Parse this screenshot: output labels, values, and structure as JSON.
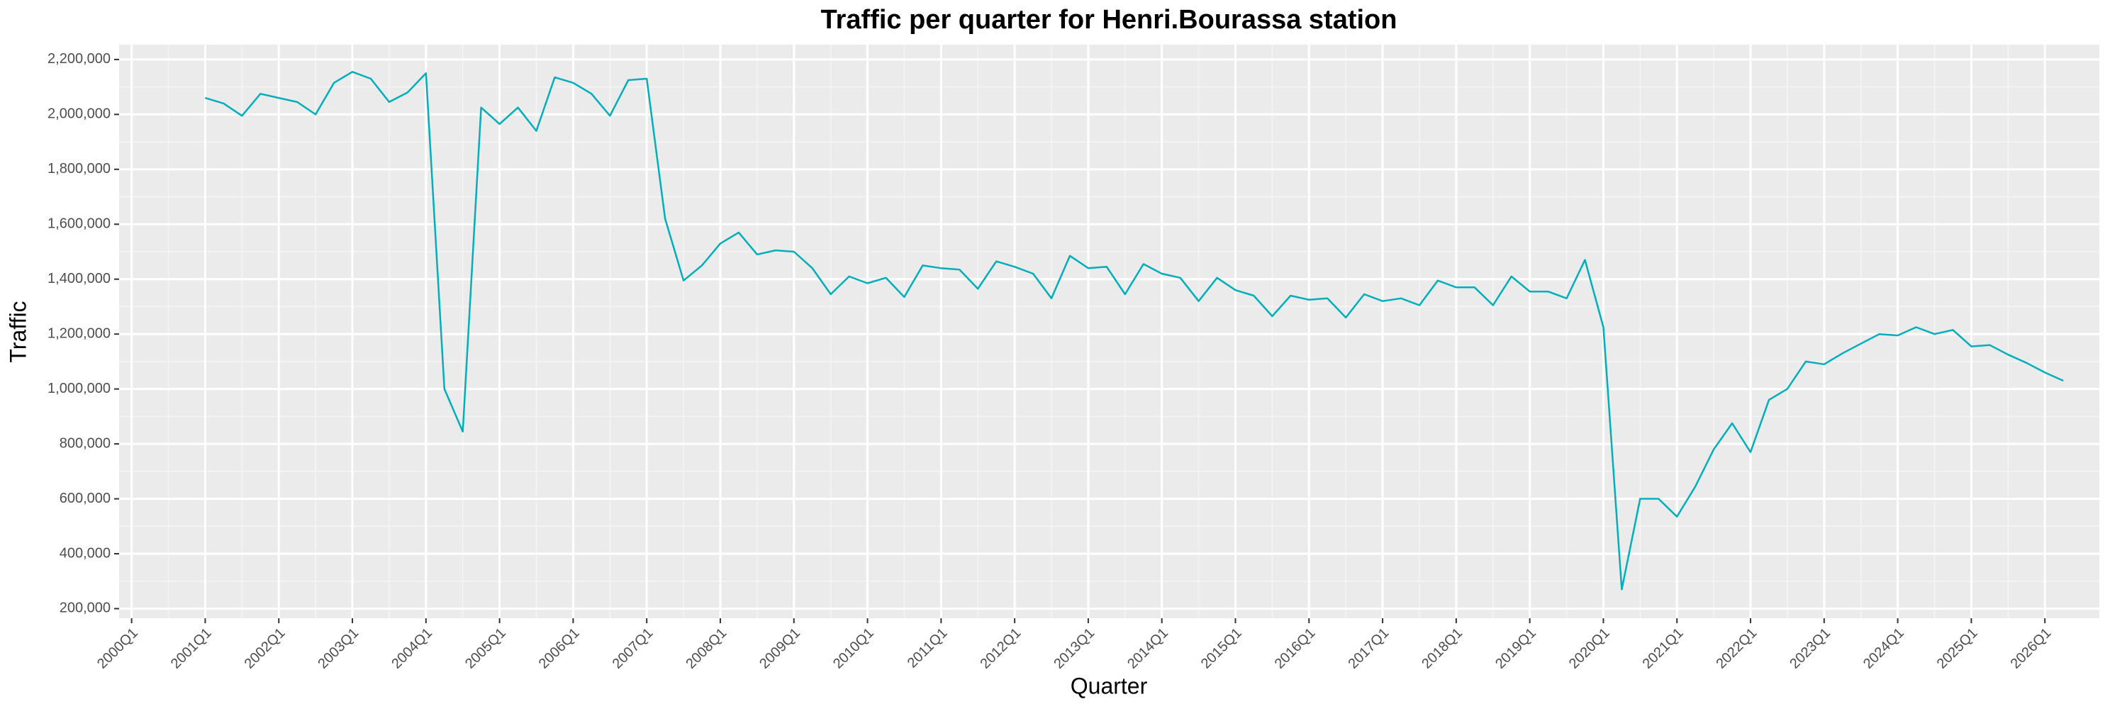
{
  "chart_data": {
    "type": "line",
    "title": "Traffic per quarter for Henri.Bourassa station",
    "x_label": "Quarter",
    "y_label": "Traffic",
    "color": "#00AFBB",
    "grid": true,
    "x": [
      "2001Q1",
      "2001Q2",
      "2001Q3",
      "2001Q4",
      "2002Q1",
      "2002Q2",
      "2002Q3",
      "2002Q4",
      "2003Q1",
      "2003Q2",
      "2003Q3",
      "2003Q4",
      "2004Q1",
      "2004Q2",
      "2004Q3",
      "2004Q4",
      "2005Q1",
      "2005Q2",
      "2005Q3",
      "2005Q4",
      "2006Q1",
      "2006Q2",
      "2006Q3",
      "2006Q4",
      "2007Q1",
      "2007Q2",
      "2007Q3",
      "2007Q4",
      "2008Q1",
      "2008Q2",
      "2008Q3",
      "2008Q4",
      "2009Q1",
      "2009Q2",
      "2009Q3",
      "2009Q4",
      "2010Q1",
      "2010Q2",
      "2010Q3",
      "2010Q4",
      "2011Q1",
      "2011Q2",
      "2011Q3",
      "2011Q4",
      "2012Q1",
      "2012Q2",
      "2012Q3",
      "2012Q4",
      "2013Q1",
      "2013Q2",
      "2013Q3",
      "2013Q4",
      "2014Q1",
      "2014Q2",
      "2014Q3",
      "2014Q4",
      "2015Q1",
      "2015Q2",
      "2015Q3",
      "2015Q4",
      "2016Q1",
      "2016Q2",
      "2016Q3",
      "2016Q4",
      "2017Q1",
      "2017Q2",
      "2017Q3",
      "2017Q4",
      "2018Q1",
      "2018Q2",
      "2018Q3",
      "2018Q4",
      "2019Q1",
      "2019Q2",
      "2019Q3",
      "2019Q4",
      "2020Q1",
      "2020Q2",
      "2020Q3",
      "2020Q4",
      "2021Q1",
      "2021Q2",
      "2021Q3",
      "2021Q4",
      "2022Q1",
      "2022Q2",
      "2022Q3",
      "2022Q4",
      "2023Q1",
      "2023Q2",
      "2023Q3",
      "2023Q4",
      "2024Q1",
      "2024Q2",
      "2024Q3",
      "2024Q4",
      "2025Q1",
      "2025Q2",
      "2025Q3",
      "2025Q4",
      "2026Q1",
      "2026Q2"
    ],
    "values": [
      2060000,
      2040000,
      1995000,
      2075000,
      2060000,
      2045000,
      2000000,
      2115000,
      2155000,
      2130000,
      2045000,
      2080000,
      2150000,
      1000000,
      845000,
      2025000,
      1965000,
      2025000,
      1940000,
      2135000,
      2115000,
      2075000,
      1995000,
      2125000,
      2130000,
      1620000,
      1395000,
      1450000,
      1530000,
      1570000,
      1490000,
      1505000,
      1500000,
      1440000,
      1345000,
      1410000,
      1385000,
      1405000,
      1335000,
      1450000,
      1440000,
      1435000,
      1365000,
      1465000,
      1445000,
      1420000,
      1330000,
      1485000,
      1440000,
      1445000,
      1345000,
      1455000,
      1420000,
      1405000,
      1320000,
      1405000,
      1360000,
      1340000,
      1265000,
      1340000,
      1325000,
      1330000,
      1260000,
      1345000,
      1320000,
      1330000,
      1305000,
      1395000,
      1370000,
      1370000,
      1305000,
      1410000,
      1355000,
      1355000,
      1330000,
      1470000,
      1225000,
      270000,
      600000,
      600000,
      535000,
      645000,
      780000,
      875000,
      770000,
      960000,
      1000000,
      1100000,
      1090000,
      1130000,
      1165000,
      1200000,
      1195000,
      1225000,
      1200000,
      1215000,
      1155000,
      1160000,
      1125000,
      1095000,
      1060000,
      1030000
    ],
    "xticks": [
      "2000Q1",
      "2001Q1",
      "2002Q1",
      "2003Q1",
      "2004Q1",
      "2005Q1",
      "2006Q1",
      "2007Q1",
      "2008Q1",
      "2009Q1",
      "2010Q1",
      "2011Q1",
      "2012Q1",
      "2013Q1",
      "2014Q1",
      "2015Q1",
      "2016Q1",
      "2017Q1",
      "2018Q1",
      "2019Q1",
      "2020Q1",
      "2021Q1",
      "2022Q1",
      "2023Q1",
      "2024Q1",
      "2025Q1",
      "2026Q1"
    ],
    "ylim": [
      165000,
      2254000
    ],
    "yticks": [
      {
        "value": 200000,
        "label": "200,000"
      },
      {
        "value": 400000,
        "label": "400,000"
      },
      {
        "value": 600000,
        "label": "600,000"
      },
      {
        "value": 800000,
        "label": "800,000"
      },
      {
        "value": 1000000,
        "label": "1,000,000"
      },
      {
        "value": 1200000,
        "label": "1,200,000"
      },
      {
        "value": 1400000,
        "label": "1,400,000"
      },
      {
        "value": 1600000,
        "label": "1,600,000"
      },
      {
        "value": 1800000,
        "label": "1,800,000"
      },
      {
        "value": 2000000,
        "label": "2,000,000"
      },
      {
        "value": 2200000,
        "label": "2,200,000"
      }
    ]
  }
}
